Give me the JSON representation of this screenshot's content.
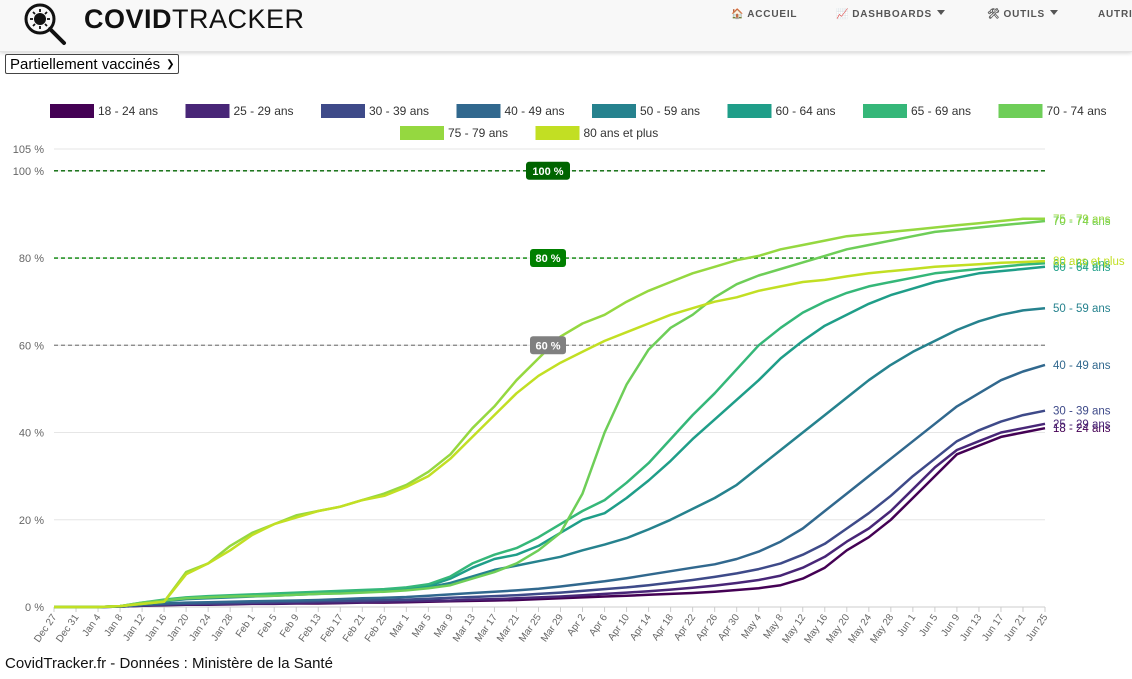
{
  "header": {
    "brand_bold": "COVID",
    "brand_light": "TRACKER",
    "nav": [
      {
        "label": "ACCUEIL",
        "icon": "house-icon",
        "dropdown": false
      },
      {
        "label": "DASHBOARDS",
        "icon": "chart-icon",
        "dropdown": true
      },
      {
        "label": "OUTILS",
        "icon": "tools-icon",
        "dropdown": true
      },
      {
        "label": "AUTRI",
        "icon": "",
        "dropdown": false
      }
    ]
  },
  "selector": {
    "value": "Partiellement vaccinés"
  },
  "footer": {
    "text": "CovidTracker.fr - Données : Ministère de la Santé"
  },
  "chart_data": {
    "type": "line",
    "ylim": [
      0,
      105
    ],
    "yticks": [
      "0 %",
      "20 %",
      "40 %",
      "60 %",
      "80 %",
      "100 %",
      "105 %"
    ],
    "ytick_values": [
      0,
      20,
      40,
      60,
      80,
      100,
      105
    ],
    "x": [
      "Dec 27",
      "Dec 31",
      "Jan 4",
      "Jan 8",
      "Jan 12",
      "Jan 16",
      "Jan 20",
      "Jan 24",
      "Jan 28",
      "Feb 1",
      "Feb 5",
      "Feb 9",
      "Feb 13",
      "Feb 17",
      "Feb 21",
      "Feb 25",
      "Mar 1",
      "Mar 5",
      "Mar 9",
      "Mar 13",
      "Mar 17",
      "Mar 21",
      "Mar 25",
      "Mar 29",
      "Apr 2",
      "Apr 6",
      "Apr 10",
      "Apr 14",
      "Apr 18",
      "Apr 22",
      "Apr 26",
      "Apr 30",
      "May 4",
      "May 8",
      "May 12",
      "May 16",
      "May 20",
      "May 24",
      "May 28",
      "Jun 1",
      "Jun 5",
      "Jun 9",
      "Jun 13",
      "Jun 17",
      "Jun 21",
      "Jun 25"
    ],
    "grid": true,
    "legend_position": "top",
    "reference_lines": [
      {
        "value": 100,
        "label": "100 %",
        "color": "#006400"
      },
      {
        "value": 80,
        "label": "80 %",
        "color": "#008000"
      },
      {
        "value": 60,
        "label": "60 %",
        "color": "#808080"
      }
    ],
    "series": [
      {
        "name": "18 - 24 ans",
        "color": "#440154",
        "end_label": "18 - 24 ans",
        "values": [
          0,
          0,
          0,
          0.1,
          0.3,
          0.4,
          0.5,
          0.5,
          0.6,
          0.7,
          0.7,
          0.8,
          0.8,
          0.9,
          1,
          1,
          1.1,
          1.2,
          1.3,
          1.4,
          1.5,
          1.6,
          1.8,
          2,
          2.2,
          2.4,
          2.6,
          2.8,
          3,
          3.2,
          3.5,
          3.9,
          4.3,
          5,
          6.5,
          9,
          13,
          16,
          20,
          25,
          30,
          35,
          37,
          39,
          40,
          41
        ]
      },
      {
        "name": "25 - 29 ans",
        "color": "#482677",
        "end_label": "25 - 29 ans",
        "values": [
          0,
          0,
          0,
          0.1,
          0.3,
          0.5,
          0.6,
          0.6,
          0.7,
          0.8,
          0.8,
          0.9,
          1,
          1,
          1.1,
          1.2,
          1.3,
          1.4,
          1.5,
          1.7,
          1.8,
          2,
          2.2,
          2.4,
          2.7,
          3,
          3.3,
          3.6,
          4,
          4.4,
          4.9,
          5.5,
          6.2,
          7.2,
          9,
          11.5,
          15,
          18,
          22,
          27,
          32,
          36,
          38,
          40,
          41,
          42
        ]
      },
      {
        "name": "30 - 39 ans",
        "color": "#3e4a89",
        "end_label": "30 - 39 ans",
        "values": [
          0,
          0,
          0,
          0.1,
          0.4,
          0.6,
          0.7,
          0.8,
          0.9,
          1,
          1.1,
          1.2,
          1.3,
          1.4,
          1.5,
          1.6,
          1.7,
          1.9,
          2.1,
          2.3,
          2.5,
          2.7,
          3,
          3.3,
          3.7,
          4.1,
          4.5,
          5,
          5.6,
          6.2,
          6.9,
          7.7,
          8.7,
          10,
          12,
          14.5,
          18,
          21.5,
          25.5,
          30,
          34,
          38,
          40.5,
          42.5,
          44,
          45
        ]
      },
      {
        "name": "40 - 49 ans",
        "color": "#31688e",
        "end_label": "40 - 49 ans",
        "values": [
          0,
          0,
          0,
          0.1,
          0.5,
          0.8,
          1,
          1.1,
          1.2,
          1.3,
          1.4,
          1.5,
          1.6,
          1.8,
          2,
          2.1,
          2.3,
          2.6,
          2.9,
          3.2,
          3.5,
          3.8,
          4.2,
          4.7,
          5.3,
          5.9,
          6.6,
          7.4,
          8.2,
          9,
          9.8,
          11,
          12.7,
          15,
          18,
          22,
          26,
          30,
          34,
          38,
          42,
          46,
          49,
          52,
          54,
          55.5
        ]
      },
      {
        "name": "50 - 59 ans",
        "color": "#26828e",
        "end_label": "50 - 59 ans",
        "values": [
          0,
          0,
          0,
          0.2,
          0.8,
          1.3,
          1.8,
          2,
          2.2,
          2.4,
          2.6,
          2.8,
          3,
          3.2,
          3.4,
          3.6,
          4,
          4.5,
          5.5,
          7,
          8.5,
          9.5,
          10.5,
          11.5,
          13,
          14.3,
          15.8,
          17.8,
          20,
          22.5,
          25,
          28,
          32,
          36,
          40,
          44,
          48,
          52,
          55.5,
          58.5,
          61,
          63.5,
          65.5,
          67,
          68,
          68.5
        ]
      },
      {
        "name": "60 - 64 ans",
        "color": "#1f9e89",
        "end_label": "60 - 64 ans",
        "values": [
          0,
          0,
          0,
          0.2,
          0.8,
          1.5,
          2,
          2.2,
          2.4,
          2.6,
          2.8,
          3,
          3.2,
          3.4,
          3.6,
          3.8,
          4.2,
          4.8,
          6.5,
          9,
          11,
          12,
          14,
          17,
          20,
          21.5,
          25,
          29,
          33.5,
          38.5,
          43,
          47.5,
          52,
          57,
          61,
          64.5,
          67,
          69.5,
          71.5,
          73,
          74.5,
          75.5,
          76.5,
          77,
          77.5,
          78
        ]
      },
      {
        "name": "65 - 69 ans",
        "color": "#35b779",
        "end_label": "65 - 69 ans",
        "values": [
          0,
          0,
          0,
          0.2,
          1,
          1.7,
          2.2,
          2.5,
          2.7,
          2.9,
          3.1,
          3.3,
          3.5,
          3.7,
          3.9,
          4.1,
          4.5,
          5.2,
          7,
          10,
          12,
          13.5,
          16,
          19,
          22,
          24.5,
          28.5,
          33,
          38.5,
          44,
          49,
          54.5,
          60,
          64,
          67.5,
          70,
          72,
          73.5,
          74.5,
          75.5,
          76.5,
          77,
          77.5,
          78,
          78.5,
          78.8
        ]
      },
      {
        "name": "70 - 74 ans",
        "color": "#6ece58",
        "end_label": "70 - 74 ans",
        "values": [
          0,
          0,
          0,
          0.2,
          1,
          1.5,
          2,
          2.2,
          2.4,
          2.5,
          2.6,
          2.8,
          3,
          3.1,
          3.3,
          3.5,
          3.8,
          4.3,
          5,
          6.5,
          8,
          10,
          13,
          17,
          26,
          40,
          51,
          59,
          64,
          67,
          71,
          74,
          76,
          77.5,
          79,
          80.5,
          82,
          83,
          84,
          85,
          86,
          86.5,
          87,
          87.5,
          88,
          88.5
        ]
      },
      {
        "name": "75 - 79 ans",
        "color": "#95d840",
        "end_label": "75 - 79 ans",
        "values": [
          0,
          0,
          0,
          0.2,
          0.7,
          1.2,
          8,
          10,
          14,
          17,
          19,
          21,
          22,
          23,
          24.5,
          26,
          28,
          31,
          35,
          41,
          46,
          52,
          57,
          62,
          65,
          67,
          70,
          72.5,
          74.5,
          76.5,
          78,
          79.5,
          80.5,
          82,
          83,
          84,
          85,
          85.5,
          86,
          86.5,
          87,
          87.5,
          88,
          88.5,
          89,
          89
        ]
      },
      {
        "name": "80 ans et plus",
        "color": "#c2df23",
        "end_label": "80 ans et plus",
        "values": [
          0,
          0,
          0,
          0.2,
          0.7,
          1.2,
          7.5,
          10,
          13,
          16.5,
          19,
          20.5,
          22,
          23,
          24.5,
          25.5,
          27.5,
          30,
          34,
          39,
          44,
          49,
          53,
          56,
          58.5,
          61,
          63,
          65,
          67,
          68.5,
          70,
          71,
          72.5,
          73.5,
          74.5,
          75,
          75.8,
          76.5,
          77,
          77.5,
          78,
          78.3,
          78.6,
          78.9,
          79.1,
          79.3
        ]
      }
    ]
  }
}
